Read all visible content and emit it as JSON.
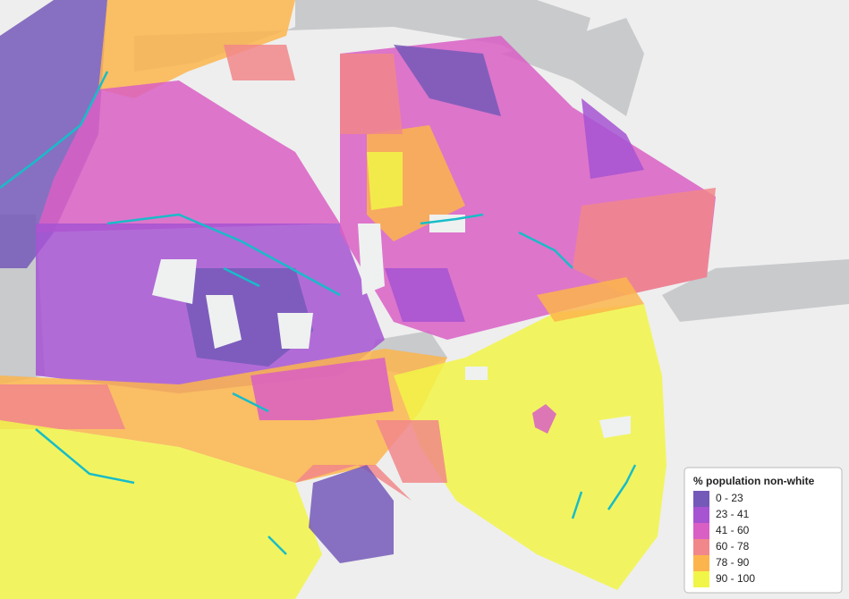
{
  "legend": {
    "title": "% population non-white",
    "items": [
      {
        "label": "0 - 23",
        "color": "#7459b9"
      },
      {
        "label": "23 - 41",
        "color": "#a654d2"
      },
      {
        "label": "41 - 60",
        "color": "#d95fc4"
      },
      {
        "label": "60 - 78",
        "color": "#f1878a"
      },
      {
        "label": "78 - 90",
        "color": "#fcb54c"
      },
      {
        "label": "90 - 100",
        "color": "#f1f547"
      }
    ]
  }
}
